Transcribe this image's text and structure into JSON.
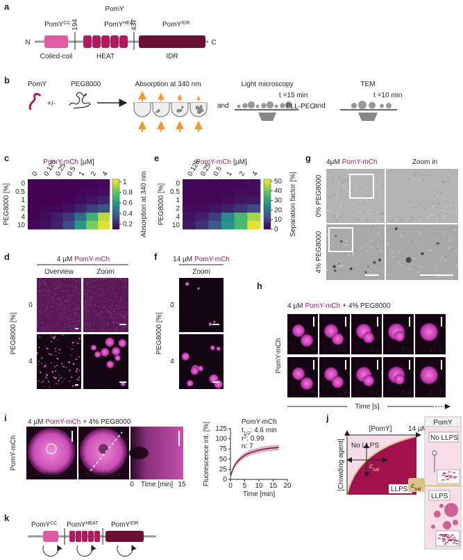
{
  "figure": {
    "a": {
      "label": "a",
      "title": "PomY",
      "n_term": "N",
      "c_term": "C",
      "boundaries": [
        194,
        437
      ],
      "domains": [
        {
          "name": "PomY",
          "sup": "CC",
          "type": "Coiled-coil"
        },
        {
          "name": "PomY",
          "sup": "HEAT",
          "type": "HEAT"
        },
        {
          "name": "PomY",
          "sup": "IDR",
          "type": "IDR"
        }
      ]
    },
    "b": {
      "label": "b",
      "protein": "PomY",
      "plus_minus": "+/-",
      "crowder": "PEG8000",
      "joins": [
        "and",
        "and"
      ],
      "assays": [
        {
          "title": "Absorption at 340 nm"
        },
        {
          "title": "Light microscopy",
          "time": "t =15 min",
          "surface": "PLL-PEG"
        },
        {
          "title": "TEM",
          "time": "t =10 min"
        }
      ]
    },
    "d": {
      "label": "d",
      "title": [
        "4 µM",
        "PomY-mCh"
      ],
      "columns": [
        "Overview",
        "Zoom"
      ],
      "y_label": "PEG8000 [%]",
      "rows": [
        "0",
        "4"
      ]
    },
    "f": {
      "label": "f",
      "title": [
        "14 µM",
        "PomY-mCh"
      ],
      "columns": [
        "Zoom"
      ],
      "y_label": "PEG8000 [%]",
      "rows": [
        "0",
        "4"
      ]
    },
    "g": {
      "label": "g",
      "title": [
        "4µM",
        "PomY-mCh"
      ],
      "columns": [
        "Zoom in"
      ],
      "rows": [
        "0% PEG8000",
        "4% PEG8000"
      ]
    },
    "h": {
      "label": "h",
      "title": [
        "4 µM",
        "PomY-mCh",
        "+ 4% PEG8000"
      ],
      "y_label": "PomY-mCh",
      "x_label": "Time [s]",
      "times": [
        [
          0,
          2.2,
          4.4,
          6.6,
          17.2
        ],
        [
          0,
          1.9,
          4.2,
          6.4,
          16.7
        ]
      ]
    },
    "i": {
      "label": "i",
      "title": [
        "4 µM",
        "PomY-mCh",
        "+ 4% PEG8000"
      ],
      "y_label": "PomY-mCh",
      "images": [
        "Prebleach",
        "Postbleach"
      ],
      "kymo_ticks": [
        0,
        15
      ],
      "kymo_label": "Time [min]"
    },
    "j": {
      "label": "j",
      "x_label": "[PomY]",
      "x_max": "14 µM",
      "y_label": "[Crowding agent]",
      "no_llps": "No LLPS",
      "llps": "LLPS",
      "csat": [
        "c",
        "sat"
      ],
      "cartoon": {
        "title": "PomY",
        "no_llps": "No LLPS",
        "llps": "LLPS",
        "csat": [
          "c",
          "sat"
        ]
      }
    },
    "k": {
      "label": "k",
      "domains": [
        {
          "name": "PomY",
          "sup": "CC"
        },
        {
          "name": "PomY",
          "sup": "HEAT"
        },
        {
          "name": "PomY",
          "sup": "IDR"
        }
      ]
    }
  },
  "chart_data": [
    {
      "type": "heatmap",
      "panel_label": "c",
      "title": [
        "PomY-mCh",
        "[µM]"
      ],
      "categories": [
        "0",
        "0.125",
        "0.25",
        "0.5",
        "1",
        "2",
        "4"
      ],
      "rows": [
        "0",
        "0.5",
        "1",
        "2",
        "4",
        "10"
      ],
      "y_label": "PEG8000 [%]",
      "values": [
        [
          0.1,
          0.1,
          0.1,
          0.1,
          0.1,
          0.11,
          0.12
        ],
        [
          0.1,
          0.1,
          0.1,
          0.1,
          0.11,
          0.12,
          0.14
        ],
        [
          0.1,
          0.1,
          0.1,
          0.11,
          0.13,
          0.16,
          0.2
        ],
        [
          0.1,
          0.11,
          0.12,
          0.14,
          0.2,
          0.28,
          0.35
        ],
        [
          0.11,
          0.13,
          0.18,
          0.26,
          0.45,
          0.7,
          0.95
        ],
        [
          0.12,
          0.14,
          0.2,
          0.32,
          0.6,
          0.85,
          1.0
        ]
      ],
      "clim": [
        0.1,
        1.05
      ],
      "cticks": [
        0.2,
        0.4,
        0.6,
        0.8,
        1
      ],
      "colorbar_label": "Absorption at 340 nm",
      "colormap": [
        "#440154",
        "#3b528b",
        "#21918c",
        "#5ec962",
        "#fde725"
      ]
    },
    {
      "type": "heatmap",
      "panel_label": "e",
      "title": [
        "PomY-mCh",
        "[µM]"
      ],
      "categories": [
        "0.125",
        "0.25",
        "0.5",
        "1",
        "2",
        "4"
      ],
      "rows": [
        "0",
        "0.5",
        "1",
        "2",
        "4",
        "10"
      ],
      "y_label": "PEG8000 [%]",
      "values": [
        [
          1,
          1,
          1,
          1,
          1,
          2
        ],
        [
          1,
          1,
          1,
          1,
          2,
          2
        ],
        [
          1,
          1,
          1,
          2,
          3,
          4
        ],
        [
          2,
          2,
          3,
          5,
          8,
          12
        ],
        [
          3,
          5,
          10,
          25,
          35,
          45
        ],
        [
          4,
          8,
          15,
          27,
          35,
          50
        ]
      ],
      "clim": [
        0,
        52
      ],
      "cticks": [
        0,
        10,
        20,
        30,
        40,
        50
      ],
      "colorbar_label": "Separation factor [%]",
      "colormap": [
        "#440154",
        "#3b528b",
        "#21918c",
        "#5ec962",
        "#fde725"
      ]
    },
    {
      "type": "line",
      "x_label": "Time [min]",
      "y_label": "Fluorescence int. [%]",
      "xlim": [
        0,
        20
      ],
      "xticks": [
        0,
        5,
        10,
        15,
        20
      ],
      "ylim": [
        0,
        125
      ],
      "yticks": [
        0,
        25,
        50,
        75,
        100,
        125
      ],
      "series": [
        {
          "name": "PomY-mCh",
          "color": "#6b1a3a",
          "band_color": "#c77a98",
          "x": [
            0,
            1,
            2,
            3,
            4,
            5,
            6,
            7,
            8,
            10,
            12,
            14,
            16,
            17
          ],
          "values": [
            8,
            28,
            40,
            48,
            54,
            59,
            63,
            66,
            68,
            72,
            75,
            77,
            78,
            79
          ],
          "error": [
            3,
            5,
            6,
            6,
            7,
            7,
            7,
            7,
            7,
            7,
            7,
            7,
            7,
            7
          ]
        }
      ],
      "annotations": [
        {
          "symbol": "t",
          "sub": "1/2",
          "text": ": 4.6 min"
        },
        {
          "symbol": "r",
          "sup": "2",
          "text": ": 0.99"
        },
        {
          "text": "n: 7"
        }
      ]
    }
  ]
}
